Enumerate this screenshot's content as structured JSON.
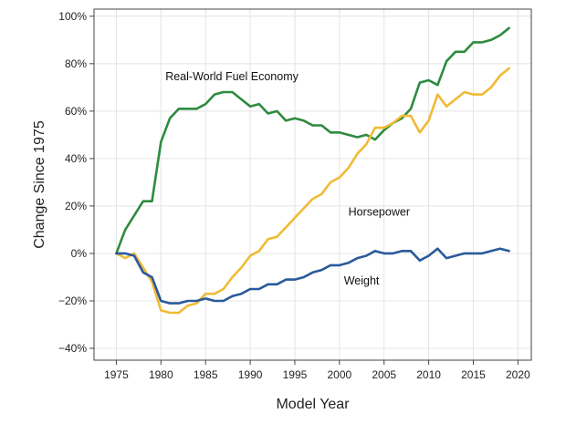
{
  "chart_data": {
    "type": "line",
    "title": "",
    "xlabel": "Model Year",
    "ylabel": "Change Since 1975",
    "xlim": [
      1972.5,
      2021.5
    ],
    "ylim": [
      -45,
      103
    ],
    "grid": true,
    "x_ticks": [
      1975,
      1980,
      1985,
      1990,
      1995,
      2000,
      2005,
      2010,
      2015,
      2020
    ],
    "x_tick_labels": [
      "1975",
      "1980",
      "1985",
      "1990",
      "1995",
      "2000",
      "2005",
      "2010",
      "2015",
      "2020"
    ],
    "y_ticks": [
      -40,
      -20,
      0,
      20,
      40,
      60,
      80,
      100
    ],
    "y_tick_labels": [
      "−40%",
      "−20%",
      "0%",
      "20%",
      "40%",
      "60%",
      "80%",
      "100%"
    ],
    "series": [
      {
        "name": "Real-World Fuel Economy",
        "color": "#2e8b3e",
        "label_at": [
          1980.5,
          73
        ],
        "x": [
          1975,
          1976,
          1977,
          1978,
          1979,
          1980,
          1981,
          1982,
          1983,
          1984,
          1985,
          1986,
          1987,
          1988,
          1989,
          1990,
          1991,
          1992,
          1993,
          1994,
          1995,
          1996,
          1997,
          1998,
          1999,
          2000,
          2001,
          2002,
          2003,
          2004,
          2005,
          2006,
          2007,
          2008,
          2009,
          2010,
          2011,
          2012,
          2013,
          2014,
          2015,
          2016,
          2017,
          2018,
          2019
        ],
        "y": [
          0,
          10,
          16,
          22,
          22,
          47,
          57,
          61,
          61,
          61,
          63,
          67,
          68,
          68,
          65,
          62,
          63,
          59,
          60,
          56,
          57,
          56,
          54,
          54,
          51,
          51,
          50,
          49,
          50,
          48,
          52,
          55,
          57,
          61,
          72,
          73,
          71,
          81,
          85,
          85,
          89,
          89,
          90,
          92,
          95
        ]
      },
      {
        "name": "Horsepower",
        "color": "#f0bb35",
        "label_at": [
          2001,
          16
        ],
        "x": [
          1975,
          1976,
          1977,
          1978,
          1979,
          1980,
          1981,
          1982,
          1983,
          1984,
          1985,
          1986,
          1987,
          1988,
          1989,
          1990,
          1991,
          1992,
          1993,
          1994,
          1995,
          1996,
          1997,
          1998,
          1999,
          2000,
          2001,
          2002,
          2003,
          2004,
          2005,
          2006,
          2007,
          2008,
          2009,
          2010,
          2011,
          2012,
          2013,
          2014,
          2015,
          2016,
          2017,
          2018,
          2019
        ],
        "y": [
          0,
          -2,
          0,
          -6,
          -12,
          -24,
          -25,
          -25,
          -22,
          -21,
          -17,
          -17,
          -15,
          -10,
          -6,
          -1,
          1,
          6,
          7,
          11,
          15,
          19,
          23,
          25,
          30,
          32,
          36,
          42,
          46,
          53,
          53,
          55,
          58,
          58,
          51,
          56,
          67,
          62,
          65,
          68,
          67,
          67,
          70,
          75,
          78
        ]
      },
      {
        "name": "Weight",
        "color": "#2a5a9a",
        "label_at": [
          2000.5,
          -13
        ],
        "x": [
          1975,
          1976,
          1977,
          1978,
          1979,
          1980,
          1981,
          1982,
          1983,
          1984,
          1985,
          1986,
          1987,
          1988,
          1989,
          1990,
          1991,
          1992,
          1993,
          1994,
          1995,
          1996,
          1997,
          1998,
          1999,
          2000,
          2001,
          2002,
          2003,
          2004,
          2005,
          2006,
          2007,
          2008,
          2009,
          2010,
          2011,
          2012,
          2013,
          2014,
          2015,
          2016,
          2017,
          2018,
          2019
        ],
        "y": [
          0,
          0,
          -1,
          -8,
          -10,
          -20,
          -21,
          -21,
          -20,
          -20,
          -19,
          -20,
          -20,
          -18,
          -17,
          -15,
          -15,
          -13,
          -13,
          -11,
          -11,
          -10,
          -8,
          -7,
          -5,
          -5,
          -4,
          -2,
          -1,
          1,
          0,
          0,
          1,
          1,
          -3,
          -1,
          2,
          -2,
          -1,
          0,
          0,
          0,
          1,
          2,
          1
        ]
      }
    ]
  }
}
